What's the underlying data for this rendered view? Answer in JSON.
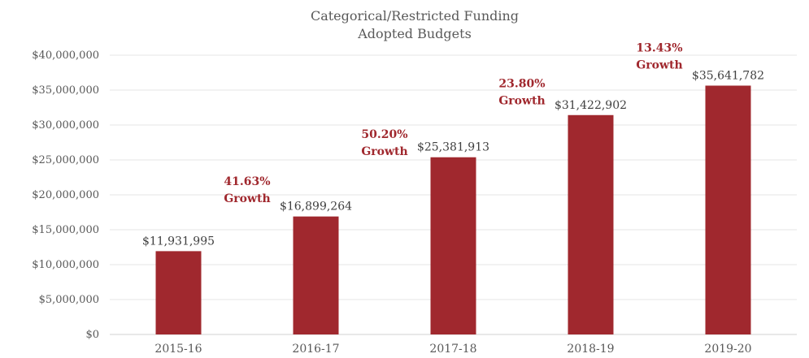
{
  "chart_data": {
    "type": "bar",
    "title": [
      "Categorical/Restricted Funding",
      "Adopted Budgets"
    ],
    "categories": [
      "2015-16",
      "2016-17",
      "2017-18",
      "2018-19",
      "2019-20"
    ],
    "values": [
      11931995,
      16899264,
      25381913,
      31422902,
      35641782
    ],
    "value_labels": [
      "$11,931,995",
      "$16,899,264",
      "$25,381,913",
      "$31,422,902",
      "$35,641,782"
    ],
    "ylim": [
      0,
      40000000
    ],
    "yticks": [
      0,
      5000000,
      10000000,
      15000000,
      20000000,
      25000000,
      30000000,
      35000000,
      40000000
    ],
    "ytick_labels": [
      "$0",
      "$5,000,000",
      "$10,000,000",
      "$15,000,000",
      "$20,000,000",
      "$25,000,000",
      "$30,000,000",
      "$35,000,000",
      "$40,000,000"
    ],
    "xlabel": "",
    "ylabel": "",
    "grid": true,
    "legend": "none",
    "bar_color": "#a0282e",
    "annotations": [
      {
        "pct": "41.63%",
        "word": "Growth"
      },
      {
        "pct": "50.20%",
        "word": "Growth"
      },
      {
        "pct": "23.80%",
        "word": "Growth"
      },
      {
        "pct": "13.43%",
        "word": "Growth"
      }
    ]
  }
}
